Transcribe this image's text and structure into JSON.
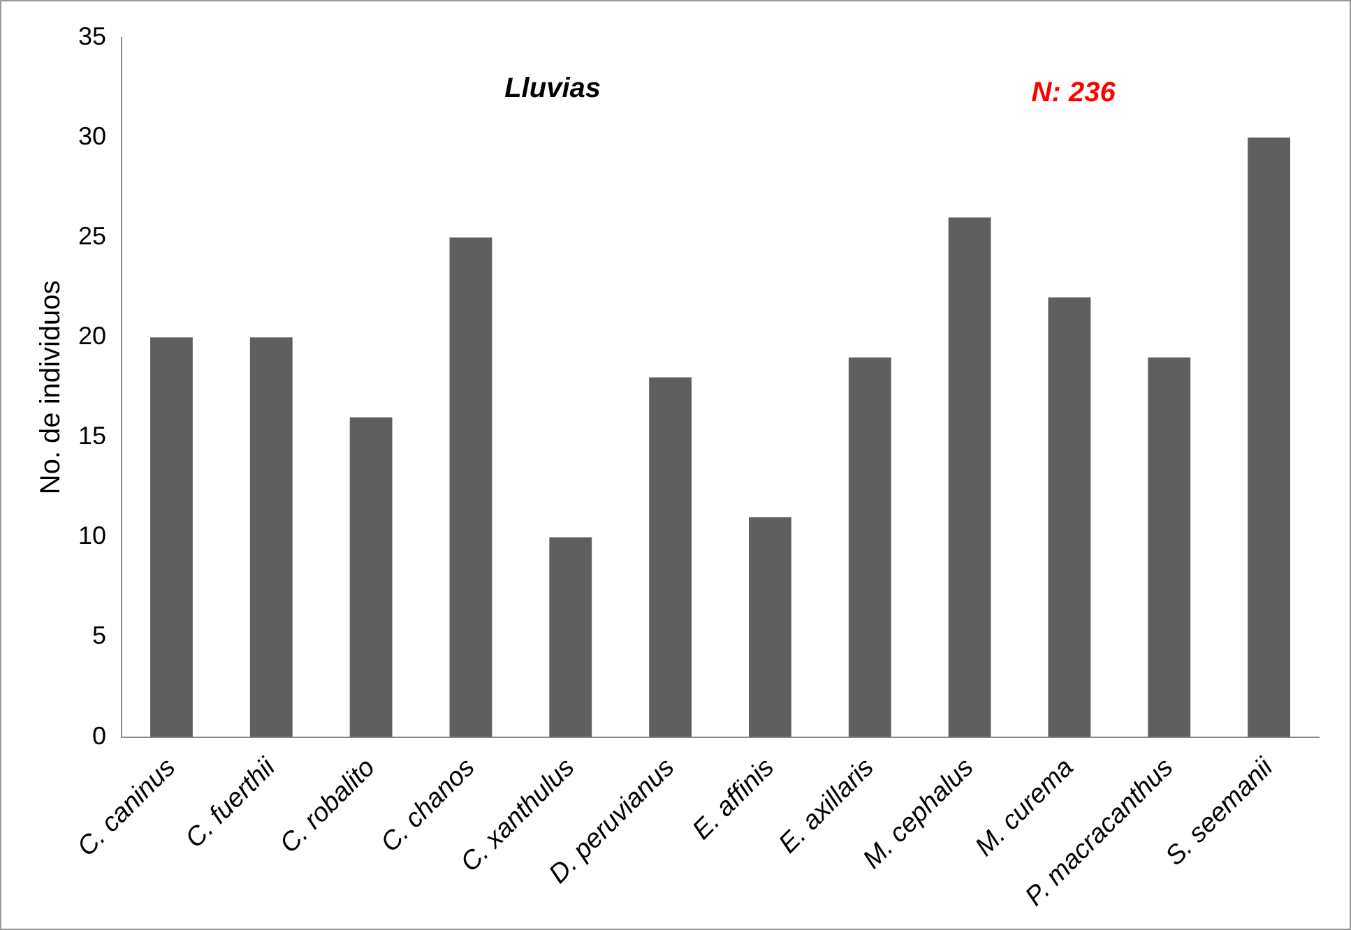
{
  "chart_data": {
    "type": "bar",
    "title": "Lluvias",
    "ylabel": "No. de individuos",
    "categories": [
      "C. caninus",
      "C. fuerthii",
      "C. robalito",
      "C. chanos",
      "C. xanthulus",
      "D. peruvianus",
      "E. affinis",
      "E. axillaris",
      "M. cephalus",
      "M. curema",
      "P. macracanthus",
      "S. seemanii"
    ],
    "values": [
      20,
      20,
      16,
      25,
      10,
      18,
      11,
      19,
      26,
      22,
      19,
      30
    ],
    "color": "#5f5f5f",
    "ylim": [
      0,
      35
    ],
    "yticks": [
      0,
      5,
      10,
      15,
      20,
      25,
      30,
      35
    ],
    "grid": false,
    "legend": false,
    "annotations": [
      "N: 236"
    ]
  }
}
